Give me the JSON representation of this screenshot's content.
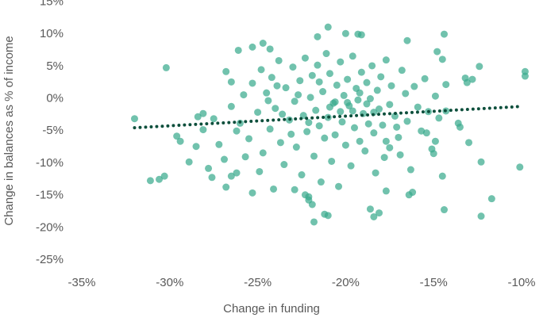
{
  "chart_data": {
    "type": "scatter",
    "x_label": "Change in funding",
    "y_label": "Change in balances as % of income",
    "xlim": [
      -35,
      -10
    ],
    "xticks": [
      {
        "value": -35,
        "label": "-35%"
      },
      {
        "value": -30,
        "label": "-30%"
      },
      {
        "value": -25,
        "label": "-25%"
      },
      {
        "value": -20,
        "label": "-20%"
      },
      {
        "value": -15,
        "label": "-15%"
      },
      {
        "value": -10,
        "label": "-10%"
      }
    ],
    "ylim": [
      -25,
      15
    ],
    "yticks": [
      {
        "value": -25,
        "label": "-25%"
      },
      {
        "value": -20,
        "label": "-20%"
      },
      {
        "value": -15,
        "label": "-15%"
      },
      {
        "value": -10,
        "label": "-10%"
      },
      {
        "value": -5,
        "label": "-5%"
      },
      {
        "value": 0,
        "label": "0%"
      },
      {
        "value": 5,
        "label": "5%"
      },
      {
        "value": 10,
        "label": "10%"
      },
      {
        "value": 15,
        "label": "15%"
      }
    ],
    "grid": false,
    "series": [
      {
        "color": "#3aaa8e",
        "x": [
          -32.0,
          -30.2,
          -31.1,
          -30.6,
          -30.3,
          -29.6,
          -29.4,
          -28.9,
          -28.5,
          -28.4,
          -28.1,
          -27.8,
          -27.6,
          -28.1,
          -26.8,
          -26.5,
          -26.2,
          -26.8,
          -26.5,
          -26.1,
          -25.3,
          -24.7,
          -24.3,
          -25.3,
          -22.9,
          -22.1,
          -21.9,
          -21.8,
          -22.1,
          -21.2,
          -21.0,
          -21.6,
          -21.0,
          -20.0,
          -19.3,
          -19.1,
          -18.6,
          -18.4,
          -18.1,
          -17.7,
          -16.5,
          -16.2,
          -16.4,
          -14.4,
          -14.5,
          -14.8,
          -14.4,
          -12.3,
          -12.3,
          -11.7,
          -12.4,
          -9.8,
          -9.8,
          -10.1,
          -13.0,
          -13.2,
          -13.1,
          -12.8,
          -13.6,
          -13.5,
          -14.3,
          -14.9,
          -15.0,
          -15.4,
          -16.9,
          -17.1,
          -17.5,
          -17.7,
          -26.5,
          -26.0,
          -25.8,
          -25.5,
          -25.3,
          -25.0,
          -24.8,
          -24.7,
          -24.5,
          -24.3,
          -24.2,
          -24.0,
          -23.8,
          -23.7,
          -23.5,
          -23.4,
          -23.2,
          -23.0,
          -22.9,
          -22.8,
          -22.6,
          -22.5,
          -22.4,
          -22.3,
          -22.2,
          -22.0,
          -21.9,
          -21.8,
          -21.7,
          -21.6,
          -21.5,
          -21.4,
          -21.3,
          -21.2,
          -21.1,
          -21.0,
          -20.9,
          -20.8,
          -20.7,
          -20.6,
          -20.5,
          -20.4,
          -20.3,
          -20.2,
          -20.1,
          -20.0,
          -19.9,
          -19.8,
          -19.7,
          -19.6,
          -19.5,
          -19.4,
          -19.3,
          -19.2,
          -19.1,
          -19.0,
          -18.9,
          -18.8,
          -18.7,
          -18.6,
          -18.5,
          -18.4,
          -18.3,
          -18.2,
          -18.1,
          -18.0,
          -17.9,
          -17.8,
          -17.7,
          -17.5,
          -17.4,
          -17.2,
          -17.0,
          -16.8,
          -16.6,
          -16.5,
          -16.3,
          -16.1,
          -15.9,
          -15.7,
          -15.5,
          -15.3,
          -15.1,
          -14.9,
          -14.7,
          -14.5,
          -14.3,
          -26.2,
          -25.7,
          -24.9,
          -24.4,
          -23.9,
          -23.6,
          -23.1,
          -22.7,
          -22.1,
          -21.5,
          -20.9,
          -20.6,
          -20.3,
          -19.9,
          -19.6,
          -19.2,
          -18.8,
          -18.4,
          -22.3,
          -24.1,
          -27.2,
          -27.5,
          -26.9
        ],
        "values": [
          -3.1,
          4.8,
          -12.7,
          -12.5,
          -12.0,
          -5.8,
          -6.6,
          -9.8,
          -7.4,
          -2.8,
          -2.3,
          -10.8,
          -12.2,
          -4.8,
          -13.7,
          -12.0,
          -11.5,
          4.2,
          2.6,
          7.5,
          8.0,
          8.6,
          7.7,
          -14.6,
          -14.1,
          -15.2,
          -16.4,
          -19.1,
          -15.7,
          -17.9,
          -18.1,
          9.6,
          11.1,
          10.1,
          10.0,
          9.9,
          -17.1,
          -18.3,
          -17.7,
          -14.3,
          9.0,
          -14.5,
          -14.9,
          10.0,
          6.1,
          7.3,
          -17.2,
          -9.8,
          -18.2,
          -15.5,
          5.0,
          4.2,
          3.5,
          -10.6,
          -6.8,
          3.2,
          2.5,
          3.0,
          -3.8,
          -4.4,
          -1.9,
          -6.6,
          -8.5,
          -5.3,
          -8.7,
          -4.4,
          -7.6,
          -6.6,
          -1.2,
          -3.8,
          0.6,
          -6.2,
          2.4,
          -2.1,
          4.5,
          -8.4,
          0.9,
          -4.7,
          3.3,
          -1.5,
          5.9,
          -6.8,
          -10.2,
          1.7,
          -3.3,
          4.9,
          -0.4,
          -7.5,
          2.8,
          -11.8,
          -2.6,
          6.3,
          -5.1,
          0.2,
          3.6,
          -8.9,
          -1.8,
          5.2,
          -4.2,
          -12.9,
          1.1,
          -6.1,
          7.0,
          -2.9,
          3.9,
          -9.7,
          -0.7,
          -5.6,
          2.1,
          -13.6,
          5.7,
          -3.6,
          0.5,
          -7.2,
          3.0,
          -1.1,
          -10.4,
          6.6,
          -4.5,
          1.6,
          -0.2,
          -6.6,
          4.1,
          -2.3,
          -8.1,
          2.5,
          -3.9,
          0.0,
          5.1,
          -5.3,
          -11.5,
          1.3,
          -1.6,
          3.4,
          -4.1,
          -9.1,
          6.0,
          -0.9,
          2.0,
          -2.7,
          -6.0,
          4.4,
          0.8,
          -3.5,
          -11.0,
          1.9,
          -1.3,
          -5.0,
          3.1,
          -2.0,
          -7.8,
          0.4,
          -3.0,
          -12.0,
          2.2,
          -5.0,
          -9.0,
          -11.3,
          -0.3,
          2.0,
          -2.4,
          -5.5,
          0.6,
          -3.7,
          2.6,
          -1.3,
          -0.5,
          -2.0,
          -0.6,
          -1.9,
          0.9,
          -0.8,
          -2.1,
          -14.9,
          -14.0,
          -7.1,
          -3.1,
          -9.4
        ]
      }
    ],
    "trendline": {
      "color": "#0d4f3c",
      "x": [
        -32,
        -10
      ],
      "values": [
        -4.5,
        -1.2
      ]
    }
  }
}
